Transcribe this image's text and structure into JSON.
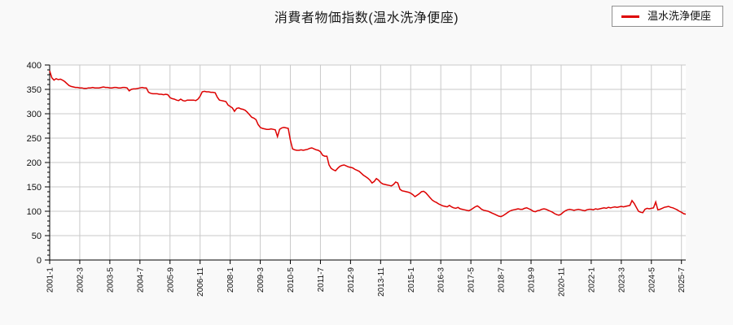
{
  "page": {
    "background": "#f9f9f9",
    "plot_background": "#ffffff"
  },
  "header": {
    "title": "消費者物価指数(温水洗浄便座)"
  },
  "legend": {
    "items": [
      {
        "label": "温水洗浄便座",
        "color": "#dd0000"
      }
    ]
  },
  "chart_data": {
    "type": "line",
    "title": "消費者物価指数(温水洗浄便座)",
    "xlabel": "",
    "ylabel": "",
    "ylim": [
      0,
      400
    ],
    "y_major_step": 50,
    "y_minor_step": 10,
    "grid": true,
    "legend_position": "top-right",
    "colors": {
      "line": "#dd0000",
      "grid": "#c9c9c9",
      "axis": "#000000",
      "tick_text": "#111111"
    },
    "x_start": "2001-1",
    "x_end": "2025-9",
    "x_interval": "monthly",
    "x_tick_labels": [
      "2001-1",
      "2002-3",
      "2003-5",
      "2004-7",
      "2005-9",
      "2006-11",
      "2008-1",
      "2009-3",
      "2010-5",
      "2011-7",
      "2012-9",
      "2013-11",
      "2015-1",
      "2016-3",
      "2017-5",
      "2018-7",
      "2019-9",
      "2020-11",
      "2022-1",
      "2023-3",
      "2024-5",
      "2025-7"
    ],
    "x_tick_indices": [
      0,
      14,
      28,
      42,
      56,
      70,
      84,
      98,
      112,
      126,
      140,
      154,
      168,
      182,
      196,
      210,
      224,
      238,
      252,
      266,
      280,
      294
    ],
    "series": [
      {
        "name": "温水洗浄便座",
        "color": "#dd0000",
        "values": [
          388,
          374,
          369,
          372,
          370,
          371,
          369,
          366,
          362,
          358,
          356,
          355,
          354,
          354,
          353,
          353,
          352,
          352,
          353,
          353,
          354,
          353,
          353,
          353,
          354,
          355,
          354,
          354,
          353,
          353,
          354,
          354,
          353,
          353,
          354,
          354,
          353,
          347,
          350,
          351,
          351,
          352,
          353,
          354,
          353,
          353,
          344,
          342,
          341,
          341,
          341,
          340,
          340,
          339,
          340,
          339,
          333,
          331,
          330,
          328,
          327,
          330,
          327,
          326,
          328,
          328,
          328,
          328,
          327,
          330,
          336,
          345,
          346,
          345,
          345,
          344,
          344,
          343,
          334,
          328,
          327,
          326,
          325,
          318,
          315,
          312,
          305,
          311,
          312,
          310,
          309,
          307,
          303,
          298,
          293,
          291,
          288,
          278,
          272,
          270,
          269,
          268,
          268,
          269,
          268,
          267,
          253,
          268,
          271,
          272,
          271,
          270,
          246,
          228,
          226,
          225,
          225,
          226,
          225,
          226,
          227,
          229,
          230,
          228,
          226,
          225,
          222,
          215,
          213,
          213,
          195,
          188,
          185,
          183,
          188,
          192,
          194,
          195,
          193,
          191,
          190,
          189,
          186,
          184,
          182,
          178,
          174,
          171,
          168,
          164,
          158,
          161,
          167,
          164,
          159,
          156,
          155,
          154,
          153,
          152,
          155,
          160,
          158,
          145,
          142,
          141,
          140,
          139,
          137,
          134,
          130,
          133,
          136,
          140,
          141,
          138,
          133,
          128,
          123,
          120,
          118,
          115,
          113,
          111,
          110,
          109,
          112,
          109,
          107,
          106,
          108,
          105,
          104,
          103,
          102,
          101,
          103,
          106,
          109,
          111,
          108,
          104,
          102,
          101,
          100,
          98,
          96,
          94,
          92,
          90,
          89,
          91,
          94,
          97,
          100,
          102,
          103,
          104,
          105,
          104,
          104,
          106,
          107,
          105,
          103,
          100,
          99,
          101,
          102,
          104,
          105,
          104,
          102,
          100,
          98,
          95,
          93,
          92,
          94,
          98,
          101,
          103,
          104,
          103,
          102,
          103,
          104,
          103,
          102,
          101,
          103,
          104,
          104,
          103,
          105,
          104,
          105,
          106,
          107,
          106,
          108,
          107,
          108,
          109,
          108,
          109,
          110,
          109,
          110,
          111,
          112,
          122,
          116,
          108,
          100,
          98,
          97,
          104,
          106,
          105,
          106,
          107,
          119,
          103,
          104,
          106,
          108,
          109,
          110,
          108,
          107,
          105,
          103,
          100,
          98,
          95,
          94
        ]
      }
    ]
  }
}
